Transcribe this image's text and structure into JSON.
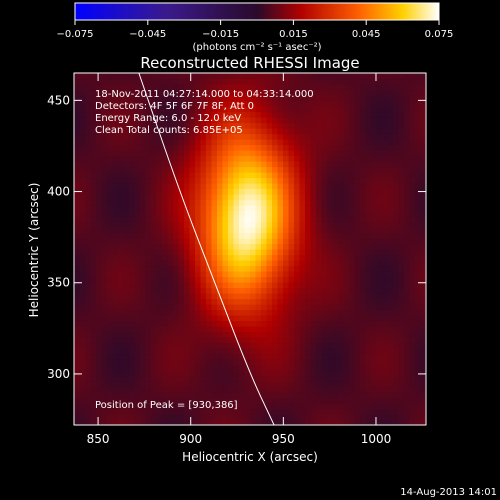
{
  "chart_data": {
    "type": "heatmap",
    "title": "Reconstructed RHESSI Image",
    "xlabel": "Heliocentric X (arcsec)",
    "ylabel": "Heliocentric Y (arcsec)",
    "xlim": [
      837,
      1027
    ],
    "ylim": [
      272,
      465
    ],
    "xticks": [
      850,
      900,
      950,
      1000
    ],
    "yticks": [
      300,
      350,
      400,
      450
    ],
    "colorbar": {
      "range": [
        -0.075,
        0.075
      ],
      "ticks": [
        {
          "value": -0.075,
          "label": "−0.075"
        },
        {
          "value": -0.045,
          "label": "−0.045"
        },
        {
          "value": -0.015,
          "label": "−0.015"
        },
        {
          "value": 0.015,
          "label": "0.015"
        },
        {
          "value": 0.045,
          "label": "0.045"
        },
        {
          "value": 0.075,
          "label": "0.075"
        }
      ],
      "unit_label": "(photons cm⁻² s⁻¹ asec⁻²)",
      "colormap": "blue-purple-red-orange-yellow-white"
    },
    "source": {
      "peak_x": 930,
      "peak_y": 386,
      "sigma_x": 18,
      "sigma_y": 34,
      "peak_value": 0.075,
      "background": 0.005
    },
    "annotations": {
      "time_range": "18-Nov-2011 04:27:14.000 to 04:33:14.000",
      "detectors": "Detectors: 4F 5F 6F 7F 8F, Att 0",
      "energy": "Energy Range: 6.0 - 12.0 keV",
      "clean": "Clean     Total counts: 6.85E+05",
      "peak": "Position of Peak = [930,386]"
    },
    "limb_curve": [
      [
        872,
        465
      ],
      [
        894,
        400
      ],
      [
        913,
        350
      ],
      [
        932,
        300
      ],
      [
        945,
        272
      ]
    ]
  },
  "footer": {
    "timestamp": "14-Aug-2013 14:01"
  }
}
